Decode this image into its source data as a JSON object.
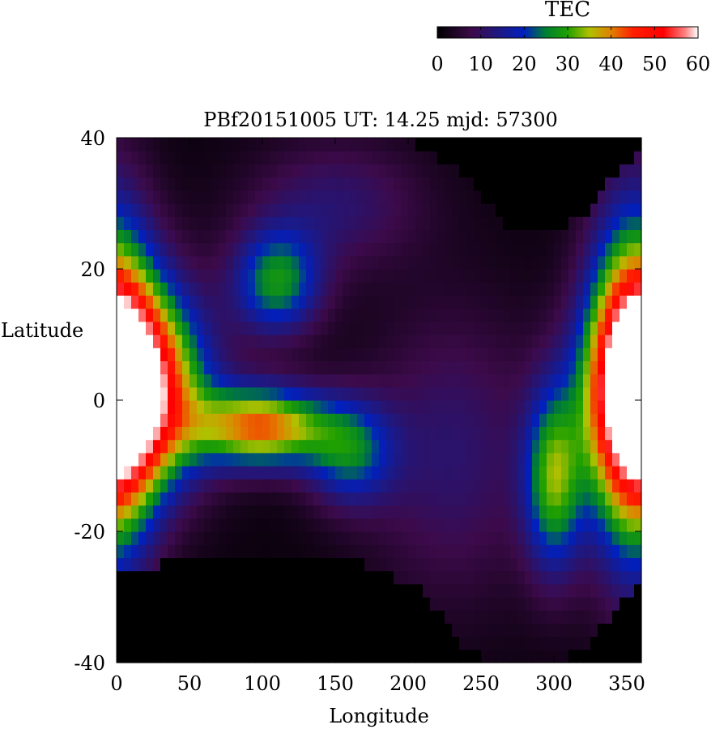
{
  "chart_data": {
    "type": "heatmap",
    "title": "PBf20151005  UT: 14.25  mjd: 57300",
    "xlabel": "Longitude",
    "ylabel": "Latitude",
    "xlim": [
      0,
      360
    ],
    "ylim": [
      -40,
      40
    ],
    "x_ticks": [
      "0",
      "50",
      "100",
      "150",
      "200",
      "250",
      "300",
      "350"
    ],
    "y_ticks": [
      "40",
      "20",
      "0",
      "-20",
      "-40"
    ],
    "colorbar": {
      "label": "TEC",
      "range": [
        0,
        60
      ],
      "ticks": [
        "0",
        "10",
        "20",
        "30",
        "40",
        "50",
        "60"
      ],
      "colormap": [
        [
          0,
          "#000000"
        ],
        [
          8,
          "#3c0a4a"
        ],
        [
          15,
          "#1a1a8a"
        ],
        [
          20,
          "#0020c0"
        ],
        [
          25,
          "#008030"
        ],
        [
          30,
          "#20a000"
        ],
        [
          35,
          "#b0c000"
        ],
        [
          40,
          "#e08000"
        ],
        [
          45,
          "#ff2000"
        ],
        [
          52,
          "#ff0000"
        ],
        [
          57,
          "#ff8080"
        ],
        [
          60,
          "#ffffff"
        ]
      ]
    },
    "grid_resolution": {
      "lon_step": 5,
      "lat_step": 2
    },
    "nodata_value": 0,
    "field_model": [
      {
        "lon": 15,
        "lat": 2,
        "peak": 52,
        "lon_width": 45,
        "lat_width": 15
      },
      {
        "lon": 100,
        "lat": -4,
        "peak": 40,
        "lon_width": 45,
        "lat_width": 6
      },
      {
        "lon": 110,
        "lat": 18,
        "peak": 25,
        "lon_width": 30,
        "lat_width": 8
      },
      {
        "lon": 160,
        "lat": -8,
        "peak": 20,
        "lon_width": 30,
        "lat_width": 8
      },
      {
        "lon": 355,
        "lat": 2,
        "peak": 52,
        "lon_width": 30,
        "lat_width": 25
      },
      {
        "lon": 300,
        "lat": -12,
        "peak": 28,
        "lon_width": 20,
        "lat_width": 14
      },
      {
        "lon": 150,
        "lat": 30,
        "peak": 10,
        "lon_width": 60,
        "lat_width": 10
      },
      {
        "lon": 230,
        "lat": -8,
        "peak": 10,
        "lon_width": 60,
        "lat_width": 22
      }
    ],
    "nodata_regions": [
      {
        "edge": "south",
        "lon": [
          0,
          30,
          80,
          130,
          170,
          210,
          240,
          260,
          300,
          320,
          360
        ],
        "lat": [
          -26,
          -25,
          -24,
          -23,
          -25,
          -29,
          -38,
          -40,
          -40,
          -38,
          -27
        ]
      },
      {
        "edge": "north",
        "lon": [
          200,
          240,
          270,
          300,
          320,
          340,
          360
        ],
        "lat": [
          40,
          34,
          26,
          26,
          28,
          34,
          38
        ]
      },
      {
        "edge": "north",
        "lon": [
          45,
          55,
          70
        ],
        "lat": [
          40,
          39,
          40
        ]
      }
    ]
  }
}
